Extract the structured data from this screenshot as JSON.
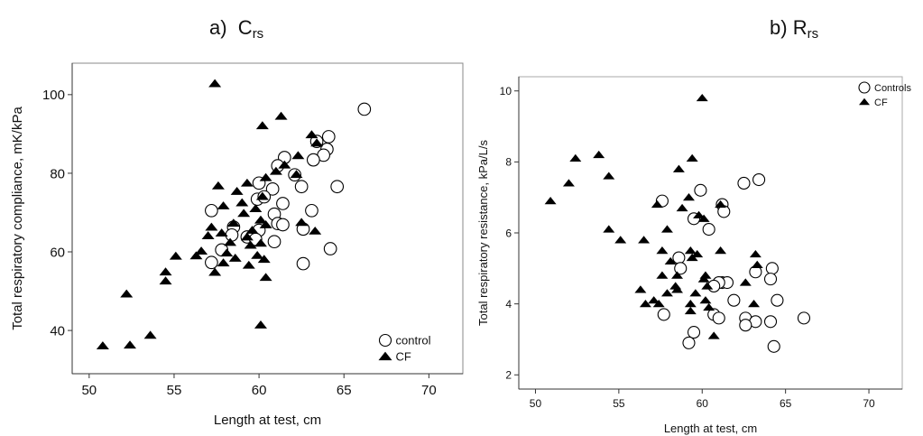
{
  "chart_data": [
    {
      "type": "scatter",
      "panel_label": "a)",
      "title_main": "C",
      "title_sub": "rs",
      "xlabel": "Length at test, cm",
      "ylabel": "Total respiratory compliance, mK/kPa",
      "xlim": [
        49,
        72
      ],
      "ylim": [
        29,
        108
      ],
      "xticks": [
        50,
        55,
        60,
        65,
        70
      ],
      "yticks": [
        40,
        60,
        80,
        100
      ],
      "grid": false,
      "legend_position": "bottom-right",
      "series": [
        {
          "name": "control",
          "marker": "open-circle",
          "color": "#000000",
          "points": [
            [
              66.2,
              96.3
            ],
            [
              64.1,
              89.3
            ],
            [
              63.4,
              88.1
            ],
            [
              64.0,
              86.1
            ],
            [
              63.8,
              84.6
            ],
            [
              61.5,
              84.0
            ],
            [
              63.2,
              83.4
            ],
            [
              61.1,
              81.9
            ],
            [
              62.1,
              79.6
            ],
            [
              60.0,
              77.5
            ],
            [
              64.6,
              76.6
            ],
            [
              62.5,
              76.6
            ],
            [
              60.8,
              76.0
            ],
            [
              59.9,
              73.4
            ],
            [
              60.3,
              74.0
            ],
            [
              61.4,
              72.3
            ],
            [
              63.1,
              70.5
            ],
            [
              57.2,
              70.5
            ],
            [
              60.9,
              69.6
            ],
            [
              61.1,
              67.2
            ],
            [
              61.4,
              66.9
            ],
            [
              58.5,
              66.3
            ],
            [
              62.6,
              65.8
            ],
            [
              60.0,
              65.5
            ],
            [
              58.4,
              64.3
            ],
            [
              59.3,
              63.8
            ],
            [
              59.8,
              63.2
            ],
            [
              60.9,
              62.6
            ],
            [
              57.8,
              60.5
            ],
            [
              64.2,
              60.8
            ],
            [
              57.2,
              57.3
            ],
            [
              62.6,
              57.0
            ]
          ]
        },
        {
          "name": "CF",
          "marker": "filled-triangle",
          "color": "#000000",
          "points": [
            [
              57.4,
              102.8
            ],
            [
              60.2,
              92.1
            ],
            [
              61.3,
              94.5
            ],
            [
              63.1,
              89.8
            ],
            [
              63.4,
              87.7
            ],
            [
              62.3,
              84.5
            ],
            [
              61.5,
              82.1
            ],
            [
              61.0,
              80.5
            ],
            [
              62.2,
              79.7
            ],
            [
              60.4,
              78.9
            ],
            [
              57.6,
              76.8
            ],
            [
              59.3,
              77.5
            ],
            [
              58.7,
              75.4
            ],
            [
              60.2,
              74.1
            ],
            [
              59.0,
              72.5
            ],
            [
              57.9,
              71.7
            ],
            [
              59.8,
              71.0
            ],
            [
              59.1,
              69.8
            ],
            [
              60.1,
              68.1
            ],
            [
              58.5,
              67.3
            ],
            [
              62.5,
              67.5
            ],
            [
              60.4,
              66.9
            ],
            [
              57.2,
              66.3
            ],
            [
              59.6,
              65.5
            ],
            [
              63.3,
              65.3
            ],
            [
              57.8,
              64.8
            ],
            [
              57.0,
              64.1
            ],
            [
              59.3,
              63.8
            ],
            [
              60.1,
              62.2
            ],
            [
              58.3,
              62.4
            ],
            [
              59.5,
              61.7
            ],
            [
              56.6,
              60.2
            ],
            [
              58.1,
              59.7
            ],
            [
              56.3,
              59.0
            ],
            [
              59.9,
              59.1
            ],
            [
              55.1,
              58.9
            ],
            [
              58.6,
              58.4
            ],
            [
              60.3,
              58.1
            ],
            [
              57.9,
              57.2
            ],
            [
              59.4,
              56.6
            ],
            [
              57.4,
              54.8
            ],
            [
              60.4,
              53.5
            ],
            [
              54.5,
              54.9
            ],
            [
              54.5,
              52.6
            ],
            [
              52.2,
              49.3
            ],
            [
              53.6,
              38.8
            ],
            [
              52.4,
              36.3
            ],
            [
              50.8,
              36.1
            ],
            [
              60.1,
              41.4
            ]
          ]
        }
      ]
    },
    {
      "type": "scatter",
      "panel_label": "b)",
      "title_main": "R",
      "title_sub": "rs",
      "xlabel": "Length at test, cm",
      "ylabel": "Total respiratory resistance, kPa/L/s",
      "xlim": [
        49,
        72
      ],
      "ylim": [
        1.6,
        10.4
      ],
      "xticks": [
        50,
        55,
        60,
        65,
        70
      ],
      "yticks": [
        2,
        4,
        6,
        8,
        10
      ],
      "grid": false,
      "legend_position": "top-right",
      "series": [
        {
          "name": "Controls",
          "marker": "open-circle",
          "color": "#000000",
          "points": [
            [
              63.4,
              7.5
            ],
            [
              62.5,
              7.4
            ],
            [
              59.9,
              7.2
            ],
            [
              57.6,
              6.9
            ],
            [
              61.2,
              6.8
            ],
            [
              61.3,
              6.6
            ],
            [
              59.5,
              6.4
            ],
            [
              60.4,
              6.1
            ],
            [
              58.6,
              5.3
            ],
            [
              58.7,
              5.0
            ],
            [
              63.2,
              4.9
            ],
            [
              64.2,
              5.0
            ],
            [
              64.1,
              4.7
            ],
            [
              61.2,
              4.6
            ],
            [
              61.5,
              4.6
            ],
            [
              61.0,
              4.6
            ],
            [
              60.7,
              4.5
            ],
            [
              61.9,
              4.1
            ],
            [
              64.5,
              4.1
            ],
            [
              57.7,
              3.7
            ],
            [
              60.7,
              3.7
            ],
            [
              61.0,
              3.6
            ],
            [
              62.6,
              3.6
            ],
            [
              63.2,
              3.5
            ],
            [
              64.1,
              3.5
            ],
            [
              62.6,
              3.4
            ],
            [
              66.1,
              3.6
            ],
            [
              59.5,
              3.2
            ],
            [
              59.2,
              2.9
            ],
            [
              64.3,
              2.8
            ]
          ]
        },
        {
          "name": "CF",
          "marker": "filled-triangle",
          "color": "#000000",
          "points": [
            [
              60.0,
              9.8
            ],
            [
              53.8,
              8.2
            ],
            [
              52.4,
              8.1
            ],
            [
              59.4,
              8.1
            ],
            [
              58.6,
              7.8
            ],
            [
              54.4,
              7.6
            ],
            [
              52.0,
              7.4
            ],
            [
              50.9,
              6.9
            ],
            [
              59.2,
              7.0
            ],
            [
              57.3,
              6.8
            ],
            [
              58.8,
              6.7
            ],
            [
              59.8,
              6.5
            ],
            [
              61.1,
              6.8
            ],
            [
              60.1,
              6.4
            ],
            [
              57.9,
              6.1
            ],
            [
              54.4,
              6.1
            ],
            [
              55.1,
              5.8
            ],
            [
              56.5,
              5.8
            ],
            [
              59.3,
              5.5
            ],
            [
              59.4,
              5.3
            ],
            [
              59.7,
              5.4
            ],
            [
              57.6,
              5.5
            ],
            [
              58.1,
              5.2
            ],
            [
              61.1,
              5.5
            ],
            [
              63.2,
              5.4
            ],
            [
              63.3,
              5.1
            ],
            [
              57.6,
              4.8
            ],
            [
              58.5,
              4.8
            ],
            [
              60.1,
              4.7
            ],
            [
              60.2,
              4.8
            ],
            [
              59.6,
              4.3
            ],
            [
              58.5,
              4.4
            ],
            [
              57.9,
              4.3
            ],
            [
              58.4,
              4.5
            ],
            [
              56.3,
              4.4
            ],
            [
              60.3,
              4.5
            ],
            [
              62.6,
              4.6
            ],
            [
              57.1,
              4.1
            ],
            [
              56.6,
              4.0
            ],
            [
              57.4,
              4.0
            ],
            [
              60.2,
              4.1
            ],
            [
              59.3,
              4.0
            ],
            [
              63.1,
              4.0
            ],
            [
              60.4,
              3.9
            ],
            [
              59.3,
              3.8
            ],
            [
              60.7,
              3.1
            ]
          ]
        }
      ]
    }
  ]
}
